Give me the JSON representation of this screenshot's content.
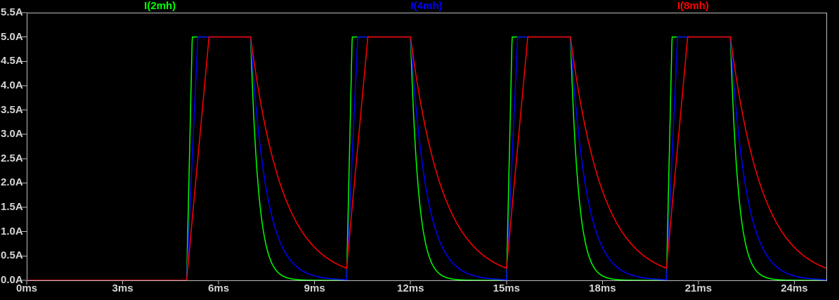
{
  "window": {
    "background_color": "#000000"
  },
  "chart_data": {
    "type": "line",
    "title": "",
    "grid": false,
    "legend_position": "top",
    "axis_color": "#bebebe",
    "text_color": "#d6d6d6",
    "xlim": [
      0,
      25
    ],
    "ylim": [
      0,
      5.5
    ],
    "x_ticks": {
      "values": [
        0,
        3,
        6,
        9,
        12,
        15,
        18,
        21,
        24
      ],
      "labels": [
        "0ms",
        "3ms",
        "6ms",
        "9ms",
        "12ms",
        "15ms",
        "18ms",
        "21ms",
        "24ms"
      ]
    },
    "y_ticks": {
      "values": [
        0,
        0.5,
        1.0,
        1.5,
        2.0,
        2.5,
        3.0,
        3.5,
        4.0,
        4.5,
        5.0,
        5.5
      ],
      "labels": [
        "0.0A",
        "0.5A",
        "1.0A",
        "1.5A",
        "2.0A",
        "2.5A",
        "3.0A",
        "3.5A",
        "4.0A",
        "4.5A",
        "5.0A",
        "5.5A"
      ]
    },
    "series": [
      {
        "name": "I(2mh)",
        "color": "#00ff00",
        "ramp_ms": 0.175,
        "tau_ms": 0.25
      },
      {
        "name": "I(4mh)",
        "color": "#0000ff",
        "ramp_ms": 0.35,
        "tau_ms": 0.5
      },
      {
        "name": "I(8mh)",
        "color": "#ff0000",
        "ramp_ms": 0.7,
        "tau_ms": 1.0
      }
    ],
    "pulse_train": {
      "first_rise_ms": 5,
      "period_ms": 5,
      "on_ms": 2,
      "peak_A": 5,
      "initial_A": 0
    }
  }
}
